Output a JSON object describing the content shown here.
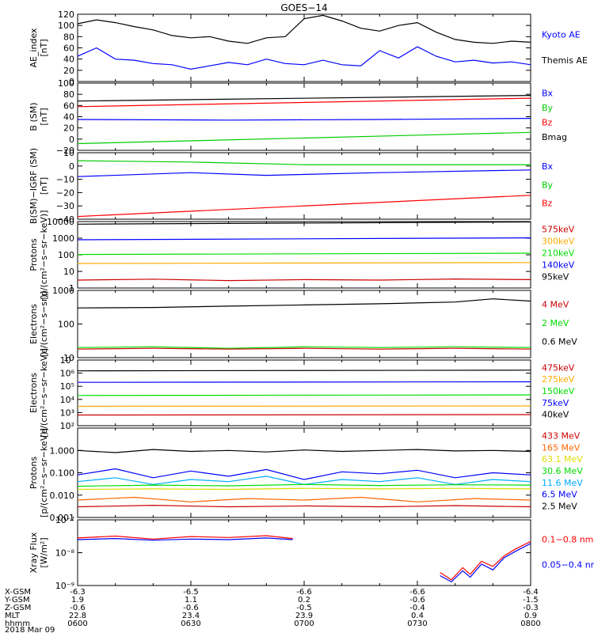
{
  "title": "GOES−14",
  "x_time_ticks": [
    "0600",
    "0630",
    "0700",
    "0730",
    "0800"
  ],
  "ephemeris": {
    "row_labels": [
      "X-GSM",
      "Y-GSM",
      "Z-GSM",
      "MLT",
      "hhmm"
    ],
    "date_label": "2018 Mar 09",
    "columns": [
      [
        "-6.3",
        "1.9",
        "-0.6",
        "22.8",
        "0600"
      ],
      [
        "-6.5",
        "1.1",
        "-0.6",
        "23.4",
        "0630"
      ],
      [
        "-6.6",
        "0.2",
        "-0.5",
        "23.9",
        "0700"
      ],
      [
        "-6.6",
        "-0.6",
        "-0.4",
        "0.4",
        "0730"
      ],
      [
        "-6.4",
        "-1.5",
        "-0.3",
        "0.9",
        "0800"
      ]
    ]
  },
  "chart_data": [
    {
      "type": "line",
      "ylabel": [
        "AE_index",
        "[nT]"
      ],
      "yscale": "linear",
      "ylim": [
        0,
        120
      ],
      "yticks": [
        0,
        20,
        40,
        60,
        80,
        100,
        120
      ],
      "ytick_labels": [
        "0",
        "20",
        "40",
        "60",
        "80",
        "100",
        "120"
      ],
      "legend": [
        {
          "label": "Kyoto AE",
          "color": "#0000ff"
        },
        {
          "label": "Themis AE",
          "color": "#000000"
        }
      ],
      "series": [
        {
          "color": "#000000",
          "x": [
            0,
            5,
            10,
            15,
            20,
            25,
            30,
            35,
            40,
            45,
            50,
            55,
            60,
            65,
            70,
            75,
            80,
            85,
            90,
            95,
            100,
            105,
            110,
            115,
            120
          ],
          "y": [
            103,
            110,
            105,
            98,
            92,
            82,
            78,
            80,
            72,
            68,
            78,
            80,
            112,
            118,
            108,
            95,
            90,
            100,
            105,
            88,
            75,
            70,
            68,
            72,
            70
          ]
        },
        {
          "color": "#0000ff",
          "x": [
            0,
            5,
            10,
            15,
            20,
            25,
            30,
            35,
            40,
            45,
            50,
            55,
            60,
            65,
            70,
            75,
            80,
            85,
            90,
            95,
            100,
            105,
            110,
            115,
            120
          ],
          "y": [
            45,
            60,
            40,
            38,
            32,
            30,
            22,
            28,
            34,
            30,
            40,
            32,
            30,
            38,
            30,
            28,
            55,
            42,
            62,
            45,
            35,
            38,
            33,
            35,
            30
          ]
        }
      ]
    },
    {
      "type": "line",
      "ylabel": [
        "B (SM)",
        "[nT]"
      ],
      "yscale": "linear",
      "ylim": [
        -20,
        100
      ],
      "yticks": [
        -20,
        0,
        20,
        40,
        60,
        80,
        100
      ],
      "ytick_labels": [
        "−20",
        "0",
        "20",
        "40",
        "60",
        "80",
        "100"
      ],
      "legend": [
        {
          "label": "Bx",
          "color": "#0000ff"
        },
        {
          "label": "By",
          "color": "#00cc00"
        },
        {
          "label": "Bz",
          "color": "#ff0000"
        },
        {
          "label": "Bmag",
          "color": "#000000"
        }
      ],
      "series": [
        {
          "color": "#000000",
          "x": [
            0,
            120
          ],
          "y": [
            68,
            78
          ]
        },
        {
          "color": "#ff0000",
          "x": [
            0,
            120
          ],
          "y": [
            58,
            73
          ]
        },
        {
          "color": "#0000ff",
          "x": [
            0,
            40,
            80,
            120
          ],
          "y": [
            35,
            34,
            35,
            37
          ]
        },
        {
          "color": "#00cc00",
          "x": [
            0,
            120
          ],
          "y": [
            -8,
            12
          ]
        }
      ]
    },
    {
      "type": "line",
      "ylabel": [
        "B(SM)−IGRF (SM)",
        "[nT]"
      ],
      "yscale": "linear",
      "ylim": [
        -40,
        10
      ],
      "yticks": [
        -40,
        -30,
        -20,
        -10,
        0,
        10
      ],
      "ytick_labels": [
        "−40",
        "−30",
        "−20",
        "−10",
        "0",
        "10"
      ],
      "legend": [
        {
          "label": "Bx",
          "color": "#0000ff"
        },
        {
          "label": "By",
          "color": "#00cc00"
        },
        {
          "label": "Bz",
          "color": "#ff0000"
        }
      ],
      "series": [
        {
          "color": "#00cc00",
          "x": [
            0,
            30,
            60,
            90,
            120
          ],
          "y": [
            4,
            3,
            1,
            1,
            1
          ]
        },
        {
          "color": "#0000ff",
          "x": [
            0,
            30,
            50,
            80,
            120
          ],
          "y": [
            -8,
            -5,
            -7,
            -5,
            -3
          ]
        },
        {
          "color": "#ff0000",
          "x": [
            0,
            120
          ],
          "y": [
            -38,
            -22
          ]
        }
      ]
    },
    {
      "type": "line",
      "ylabel": [
        "Protons",
        "[p/(cm²−s−sr−keV)]"
      ],
      "yscale": "log",
      "ylim": [
        1,
        10000
      ],
      "yticks": [
        1,
        10,
        100,
        1000,
        10000
      ],
      "ytick_labels": [
        "1",
        "10",
        "100",
        "1000",
        "10000"
      ],
      "legend": [
        {
          "label": "575keV",
          "color": "#cc0000"
        },
        {
          "label": "300keV",
          "color": "#ffaa00"
        },
        {
          "label": "210keV",
          "color": "#00dd00"
        },
        {
          "label": "140keV",
          "color": "#0000ff"
        },
        {
          "label": "95keV",
          "color": "#000000"
        }
      ],
      "series": [
        {
          "color": "#000000",
          "x": [
            0,
            120
          ],
          "y": [
            7000,
            9500
          ]
        },
        {
          "color": "#0000ff",
          "x": [
            0,
            120
          ],
          "y": [
            800,
            1050
          ]
        },
        {
          "color": "#00dd00",
          "x": [
            0,
            120
          ],
          "y": [
            105,
            125
          ]
        },
        {
          "color": "#ffaa00",
          "x": [
            0,
            120
          ],
          "y": [
            30,
            34
          ]
        },
        {
          "color": "#cc0000",
          "x": [
            0,
            20,
            40,
            60,
            80,
            100,
            120
          ],
          "y": [
            3,
            3.4,
            2.8,
            3.2,
            3.0,
            3.5,
            3.2
          ]
        }
      ]
    },
    {
      "type": "line",
      "ylabel": [
        "Electrons",
        "[e/(cm²−s−sr)]"
      ],
      "yscale": "log",
      "ylim": [
        10,
        1000
      ],
      "yticks": [
        10,
        100,
        1000
      ],
      "ytick_labels": [
        "10",
        "100",
        "1000"
      ],
      "legend": [
        {
          "label": "4 MeV",
          "color": "#cc0000"
        },
        {
          "label": "2 MeV",
          "color": "#00dd00"
        },
        {
          "label": "0.6 MeV",
          "color": "#000000"
        }
      ],
      "series": [
        {
          "color": "#000000",
          "x": [
            0,
            20,
            40,
            60,
            80,
            100,
            110,
            120
          ],
          "y": [
            300,
            310,
            340,
            370,
            400,
            450,
            560,
            480
          ]
        },
        {
          "color": "#00dd00",
          "x": [
            0,
            20,
            40,
            60,
            80,
            100,
            120
          ],
          "y": [
            20,
            21,
            19,
            21,
            20,
            21,
            20
          ]
        },
        {
          "color": "#cc0000",
          "x": [
            0,
            20,
            40,
            60,
            80,
            100,
            120
          ],
          "y": [
            18,
            19,
            18,
            19,
            18,
            19,
            18
          ]
        }
      ]
    },
    {
      "type": "line",
      "ylabel": [
        "Electrons",
        "[e/(cm²−s−sr−keV)]"
      ],
      "yscale": "log",
      "ylim": [
        100,
        10000000
      ],
      "yticks": [
        100,
        1000,
        10000,
        100000,
        1000000,
        10000000
      ],
      "ytick_labels": [
        "10²",
        "10³",
        "10⁴",
        "10⁵",
        "10⁶",
        "10⁷"
      ],
      "legend": [
        {
          "label": "475keV",
          "color": "#cc0000"
        },
        {
          "label": "275keV",
          "color": "#ffaa00"
        },
        {
          "label": "150keV",
          "color": "#00dd00"
        },
        {
          "label": "75keV",
          "color": "#0000ff"
        },
        {
          "label": "40keV",
          "color": "#000000"
        }
      ],
      "series": [
        {
          "color": "#000000",
          "x": [
            0,
            120
          ],
          "y": [
            1500000,
            1700000
          ]
        },
        {
          "color": "#0000ff",
          "x": [
            0,
            120
          ],
          "y": [
            200000,
            220000
          ]
        },
        {
          "color": "#00dd00",
          "x": [
            0,
            120
          ],
          "y": [
            20000,
            22000
          ]
        },
        {
          "color": "#ffaa00",
          "x": [
            0,
            120
          ],
          "y": [
            3000,
            3200
          ]
        },
        {
          "color": "#cc0000",
          "x": [
            0,
            120
          ],
          "y": [
            650,
            700
          ]
        }
      ]
    },
    {
      "type": "line",
      "ylabel": [
        "Protons",
        "[p/(cm²−s−sr−keV)]"
      ],
      "yscale": "log",
      "ylim": [
        0.001,
        10
      ],
      "yticks": [
        0.001,
        0.01,
        0.1,
        1
      ],
      "ytick_labels": [
        "0.001",
        "0.010",
        "0.100",
        "1.000"
      ],
      "legend": [
        {
          "label": "433 MeV",
          "color": "#cc0000"
        },
        {
          "label": "165 MeV",
          "color": "#ff6600"
        },
        {
          "label": "63.1 MeV",
          "color": "#dddd00"
        },
        {
          "label": "30.6 MeV",
          "color": "#00dd00"
        },
        {
          "label": "11.6 MeV",
          "color": "#00aaff"
        },
        {
          "label": "6.5 MeV",
          "color": "#0000ff"
        },
        {
          "label": "2.5 MeV",
          "color": "#000000"
        }
      ],
      "series": [
        {
          "color": "#000000",
          "x": [
            0,
            10,
            20,
            30,
            40,
            50,
            60,
            70,
            80,
            90,
            100,
            110,
            120
          ],
          "y": [
            1.0,
            0.8,
            1.1,
            0.9,
            1.0,
            0.85,
            1.05,
            0.9,
            1.0,
            1.1,
            0.95,
            1.0,
            0.9
          ]
        },
        {
          "color": "#0000ff",
          "x": [
            0,
            10,
            20,
            30,
            40,
            50,
            60,
            70,
            80,
            90,
            100,
            110,
            120
          ],
          "y": [
            0.08,
            0.15,
            0.06,
            0.12,
            0.07,
            0.14,
            0.05,
            0.11,
            0.09,
            0.13,
            0.06,
            0.1,
            0.08
          ]
        },
        {
          "color": "#00aaff",
          "x": [
            0,
            10,
            20,
            30,
            40,
            50,
            60,
            70,
            80,
            90,
            100,
            110,
            120
          ],
          "y": [
            0.04,
            0.06,
            0.03,
            0.05,
            0.04,
            0.07,
            0.03,
            0.05,
            0.04,
            0.06,
            0.03,
            0.05,
            0.04
          ]
        },
        {
          "color": "#00dd00",
          "x": [
            0,
            20,
            40,
            60,
            80,
            100,
            120
          ],
          "y": [
            0.025,
            0.028,
            0.026,
            0.03,
            0.027,
            0.029,
            0.028
          ]
        },
        {
          "color": "#dddd00",
          "x": [
            0,
            20,
            40,
            60,
            80,
            100,
            120
          ],
          "y": [
            0.018,
            0.019,
            0.018,
            0.02,
            0.019,
            0.02,
            0.019
          ]
        },
        {
          "color": "#ff6600",
          "x": [
            0,
            15,
            30,
            45,
            60,
            75,
            90,
            105,
            120
          ],
          "y": [
            0.006,
            0.008,
            0.005,
            0.007,
            0.006,
            0.008,
            0.005,
            0.007,
            0.006
          ]
        },
        {
          "color": "#cc0000",
          "x": [
            0,
            20,
            40,
            60,
            80,
            100,
            120
          ],
          "y": [
            0.003,
            0.0035,
            0.003,
            0.0033,
            0.003,
            0.0034,
            0.003
          ]
        }
      ]
    },
    {
      "type": "line",
      "ylabel": [
        "Xray Flux",
        "[W/m²]"
      ],
      "yscale": "log",
      "ylim": [
        1e-09,
        1e-07
      ],
      "yticks": [
        1e-09,
        1e-08,
        1e-07
      ],
      "ytick_labels": [
        "10⁻⁹",
        "10⁻⁸",
        "10⁻⁷"
      ],
      "legend": [
        {
          "label": "0.1−0.8 nm",
          "color": "#ff0000"
        },
        {
          "label": "0.05−0.4 nm",
          "color": "#0000ff"
        }
      ],
      "series": [
        {
          "color": "#ff0000",
          "x": [
            0,
            10,
            20,
            30,
            40,
            50,
            57
          ],
          "y": [
            2.8e-08,
            3.2e-08,
            2.6e-08,
            3.1e-08,
            2.9e-08,
            3.3e-08,
            2.7e-08
          ]
        },
        {
          "color": "#0000ff",
          "x": [
            0,
            10,
            20,
            30,
            40,
            50,
            57
          ],
          "y": [
            2.5e-08,
            2.7e-08,
            2.4e-08,
            2.6e-08,
            2.5e-08,
            2.8e-08,
            2.5e-08
          ]
        },
        {
          "color": "#ff0000",
          "x": [
            96,
            99,
            102,
            104,
            107,
            110,
            113,
            116,
            120
          ],
          "y": [
            2.5e-09,
            1.5e-09,
            3.5e-09,
            2.2e-09,
            5.5e-09,
            3.8e-09,
            8e-09,
            1.3e-08,
            2.2e-08
          ]
        },
        {
          "color": "#0000ff",
          "x": [
            96,
            99,
            102,
            104,
            107,
            110,
            113,
            116,
            120
          ],
          "y": [
            2e-09,
            1.3e-09,
            2.8e-09,
            1.8e-09,
            4.5e-09,
            3e-09,
            7e-09,
            1.1e-08,
            1.9e-08
          ]
        }
      ]
    }
  ]
}
